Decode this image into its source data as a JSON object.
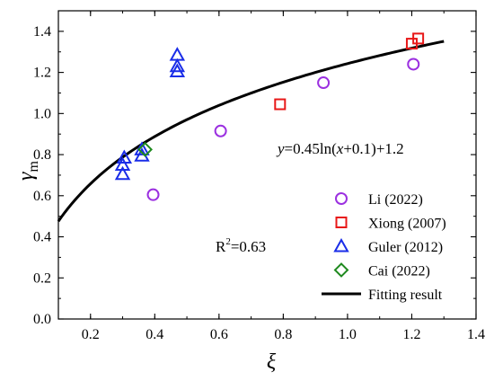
{
  "chart_data": {
    "type": "scatter",
    "xlabel": "ξ",
    "ylabel_main": "γ",
    "ylabel_sub": "m",
    "xlim": [
      0.1,
      1.4
    ],
    "ylim": [
      0.0,
      1.5
    ],
    "x_ticks": [
      "0.2",
      "0.4",
      "0.6",
      "0.8",
      "1.0",
      "1.2",
      "1.4"
    ],
    "y_ticks": [
      "0.0",
      "0.2",
      "0.4",
      "0.6",
      "0.8",
      "1.0",
      "1.2",
      "1.4"
    ],
    "grid": false,
    "legend_position": "bottom-right",
    "series": [
      {
        "name": "Li (2022)",
        "marker": "circle",
        "color": "#9b30e0",
        "points": [
          [
            0.395,
            0.605
          ],
          [
            0.605,
            0.915
          ],
          [
            0.925,
            1.15
          ],
          [
            1.205,
            1.24
          ]
        ]
      },
      {
        "name": "Xiong (2007)",
        "marker": "square",
        "color": "#e81818",
        "points": [
          [
            0.79,
            1.045
          ],
          [
            1.2,
            1.34
          ],
          [
            1.22,
            1.365
          ]
        ]
      },
      {
        "name": "Guler (2012)",
        "marker": "triangle",
        "color": "#1a2de8",
        "points": [
          [
            0.3,
            0.705
          ],
          [
            0.3,
            0.75
          ],
          [
            0.305,
            0.785
          ],
          [
            0.36,
            0.795
          ],
          [
            0.36,
            0.825
          ],
          [
            0.47,
            1.205
          ],
          [
            0.47,
            1.23
          ],
          [
            0.47,
            1.285
          ]
        ]
      },
      {
        "name": "Cai (2022)",
        "marker": "diamond",
        "color": "#1f8a1f",
        "points": [
          [
            0.37,
            0.825
          ]
        ]
      },
      {
        "name": "Fitting result",
        "marker": "line",
        "color": "#000000",
        "fit": {
          "a": 0.45,
          "b": 0.1,
          "c": 1.2,
          "x_range": [
            0.1,
            1.3
          ]
        }
      }
    ],
    "annotations": {
      "equation": {
        "y_var": "y",
        "part1": "=0.45ln(",
        "x_var": "x",
        "part2": "+0.1)+1.2"
      },
      "r2": {
        "prefix": "R",
        "sup": "2",
        "suffix": "=0.63"
      }
    }
  }
}
